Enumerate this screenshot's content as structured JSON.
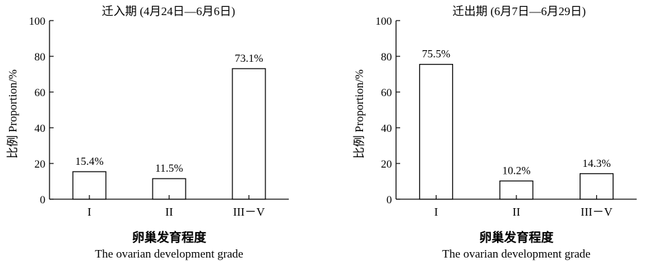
{
  "chart_data": [
    {
      "type": "bar",
      "title": "迁入期 (4月24日—6月6日)",
      "categories": [
        "I",
        "II",
        "III－V"
      ],
      "values": [
        15.4,
        11.5,
        73.1
      ],
      "data_labels": [
        "15.4%",
        "11.5%",
        "73.1%"
      ],
      "xlabel": "卵巢发育程度",
      "xlabel_en": "The ovarian development grade",
      "ylabel": "比例 Proportion/%",
      "ylim": [
        0,
        100
      ],
      "yticks": [
        0,
        20,
        40,
        60,
        80,
        100
      ],
      "grid": false,
      "bar_fill": "#ffffff",
      "bar_stroke": "#000000"
    },
    {
      "type": "bar",
      "title": "迁出期 (6月7日—6月29日)",
      "categories": [
        "I",
        "II",
        "III－V"
      ],
      "values": [
        75.5,
        10.2,
        14.3
      ],
      "data_labels": [
        "75.5%",
        "10.2%",
        "14.3%"
      ],
      "xlabel": "卵巢发育程度",
      "xlabel_en": "The ovarian development grade",
      "ylabel": "比例 Proportion/%",
      "ylim": [
        0,
        100
      ],
      "yticks": [
        0,
        20,
        40,
        60,
        80,
        100
      ],
      "grid": false,
      "bar_fill": "#ffffff",
      "bar_stroke": "#000000"
    }
  ]
}
